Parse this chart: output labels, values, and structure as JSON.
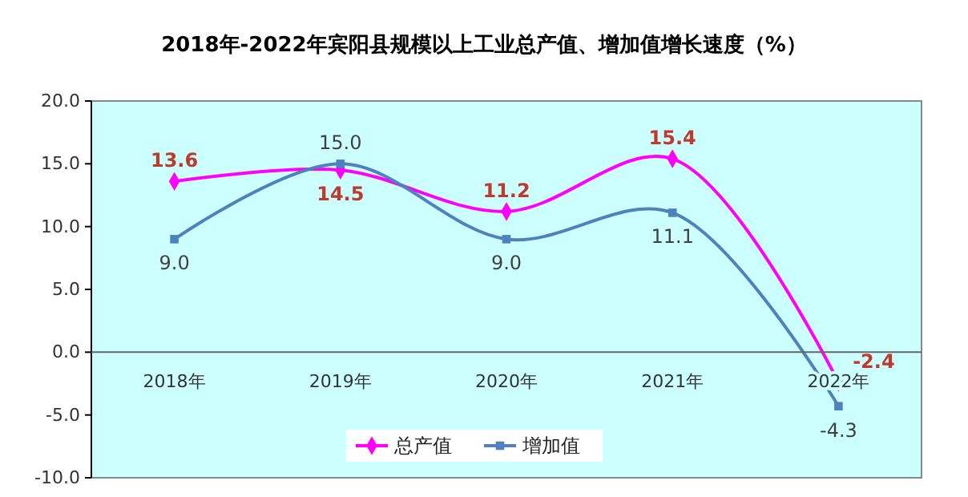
{
  "chart_data": {
    "type": "line",
    "title": "2018年-2022年宾阳县规模以上工业总产值、增加值增长速度（%）",
    "categories": [
      "2018年",
      "2019年",
      "2020年",
      "2021年",
      "2022年"
    ],
    "series": [
      {
        "name": "总产值",
        "color": "#ff00ff",
        "marker": "diamond",
        "values": [
          13.6,
          14.5,
          11.2,
          15.4,
          -2.4
        ],
        "value_labels": [
          "13.6",
          "14.5",
          "11.2",
          "15.4",
          "-2.4"
        ]
      },
      {
        "name": "增加值",
        "color": "#4f81bd",
        "marker": "square",
        "values": [
          9.0,
          15.0,
          9.0,
          11.1,
          -4.3
        ],
        "value_labels": [
          "9.0",
          "15.0",
          "9.0",
          "11.1",
          "-4.3"
        ]
      }
    ],
    "ylim": [
      -10,
      20
    ],
    "yticks": [
      {
        "value": -10,
        "label": "-10.0"
      },
      {
        "value": -5,
        "label": "-5.0"
      },
      {
        "value": 0,
        "label": "0.0"
      },
      {
        "value": 5,
        "label": "5.0"
      },
      {
        "value": 10,
        "label": "10.0"
      },
      {
        "value": 15,
        "label": "15.0"
      },
      {
        "value": 20,
        "label": "20.0"
      }
    ],
    "grid": false,
    "legend": "bottom"
  }
}
